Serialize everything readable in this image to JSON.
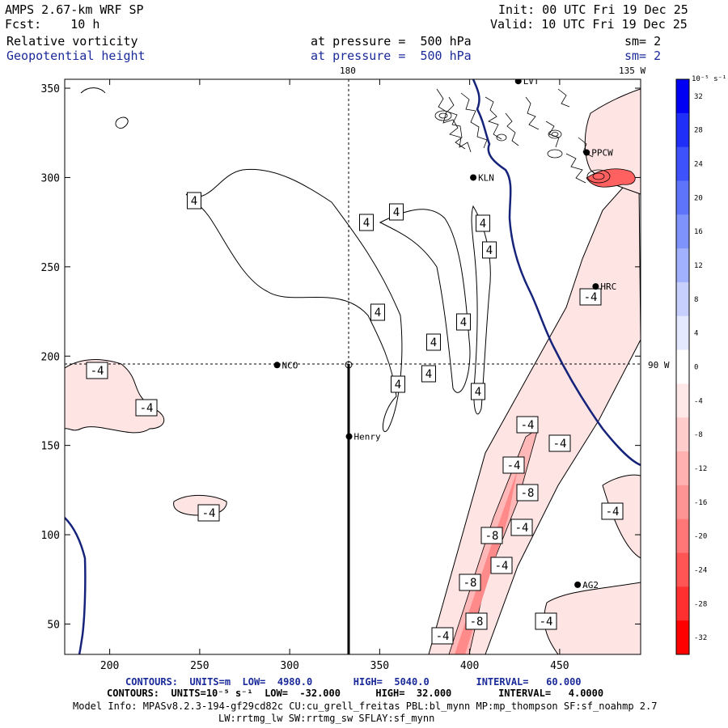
{
  "header": {
    "model": "AMPS 2.67-km WRF SP",
    "fcst_label": "Fcst:",
    "fcst_value": "10 h",
    "init": "Init: 00 UTC Fri 19 Dec 25",
    "valid": "Valid: 10 UTC Fri 19 Dec 25",
    "field1": "Relative vorticity",
    "field2": "Geopotential height",
    "level1": "at pressure =  500 hPa",
    "level2": "at pressure =  500 hPa",
    "sm1": "sm= 2",
    "sm2": "sm= 2"
  },
  "map_labels": {
    "lon_180": "180",
    "lon_135": "135 W",
    "lon_90": "90 W"
  },
  "stations": [
    {
      "name": "NCO",
      "x": 293,
      "y": 195
    },
    {
      "name": "Henry",
      "x": 333,
      "y": 155
    },
    {
      "name": "KLN",
      "x": 402,
      "y": 300
    },
    {
      "name": "HRC",
      "x": 470,
      "y": 239
    },
    {
      "name": "AG2",
      "x": 460,
      "y": 72
    },
    {
      "name": "PPCW",
      "x": 465,
      "y": 314
    },
    {
      "name": "LVT",
      "x": 427,
      "y": 354
    }
  ],
  "colorbar": {
    "unit": "10⁻⁵ s⁻¹",
    "ticks": [
      "32",
      "28",
      "24",
      "20",
      "16",
      "12",
      "8",
      "4",
      "0",
      "-4",
      "-8",
      "-12",
      "-16",
      "-20",
      "-24",
      "-28",
      "-32"
    ],
    "colors": [
      "#0000f5",
      "#1f2ff8",
      "#3d52fa",
      "#5d74fb",
      "#7f93fc",
      "#a2b1fd",
      "#c6cffe",
      "#e5e9ff",
      "#ffffff",
      "#ffe8e8",
      "#ffcccc",
      "#ffb0b0",
      "#ff9494",
      "#ff7777",
      "#ff5555",
      "#ff3030",
      "#ff0000"
    ]
  },
  "contour_labels": {
    "positive": "4",
    "negative": "-4",
    "negative8": "-8"
  },
  "chart_data": {
    "type": "contour",
    "title": "Relative vorticity / Geopotential height at 500 hPa",
    "x_axis": {
      "range": [
        175,
        495
      ],
      "ticks": [
        200,
        250,
        300,
        350,
        400,
        450
      ]
    },
    "y_axis": {
      "range": [
        33,
        355
      ],
      "ticks": [
        50,
        100,
        150,
        200,
        250,
        300,
        350
      ]
    },
    "contours_height": {
      "units": "m",
      "low": 4980.0,
      "high": 5040.0,
      "interval": 60.0
    },
    "contours_vorticity": {
      "units": "10-5 s-1",
      "low": -32.0,
      "high": 32.0,
      "interval": 4.0
    }
  },
  "footer": {
    "line1_a": "CONTOURS:  UNITS=m  LOW=  4980.0",
    "line1_b": "HIGH=  5040.0",
    "line1_c": "INTERVAL=   60.000",
    "line2_a": "CONTOURS:  UNITS=10⁻⁵ s⁻¹  LOW=  -32.000",
    "line2_b": "HIGH=  32.000",
    "line2_c": "INTERVAL=   4.0000",
    "line3": "Model Info: MPASv8.2.3-194-gf29cd82c CU:cu_grell_freitas PBL:bl_mynn MP:mp_thompson SF:sf_noahmp 2.7",
    "line4": "LW:rrtmg_lw SW:rrtmg_sw SFLAY:sf_mynn"
  }
}
